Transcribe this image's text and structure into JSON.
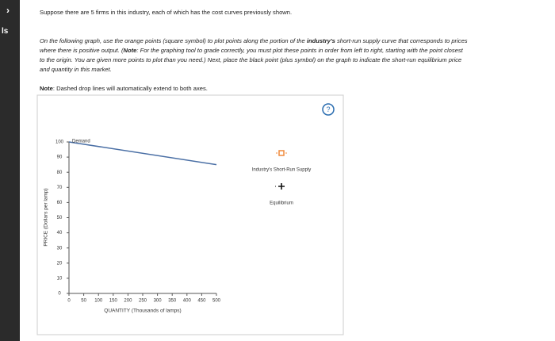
{
  "sidebar": {
    "label": "ls",
    "toggle": "›"
  },
  "prompt": "Suppose there are 5 firms in this industry, each of which has the cost curves previously shown.",
  "instructions": [
    "On the following graph, use the orange points (square symbol) to plot points along the portion of the ",
    "industry's",
    " short-run supply curve that corresponds to prices where there is positive output. (",
    "Note",
    ": For the graphing tool to grade correctly, you must plot these points in order from left to right, starting with the point closest to the origin. You are given more points to plot than you need.) Next, place the black point (plus symbol) on the graph to indicate the short-run equilibrium price and quantity in this market."
  ],
  "note": {
    "label": "Note",
    "text": ": Dashed drop lines will automatically extend to both axes."
  },
  "help": "?",
  "chart_data": {
    "type": "line",
    "x_label": "QUANTITY (Thousands of lamps)",
    "y_label": "PRICE (Dollars per lamp)",
    "series": [
      {
        "name": "Demand",
        "color": "#4a6fa5",
        "x": [
          0,
          500
        ],
        "values": [
          100,
          85
        ]
      }
    ],
    "xlim": [
      0,
      500
    ],
    "xticks": [
      0,
      50,
      100,
      150,
      200,
      250,
      300,
      350,
      400,
      450,
      500
    ],
    "ylim": [
      0,
      100
    ],
    "yticks": [
      0,
      10,
      20,
      30,
      40,
      50,
      60,
      70,
      80,
      90,
      100
    ],
    "legend": [
      {
        "name": "Industry's Short-Run Supply",
        "color": "#f08a3c",
        "symbol": "square"
      },
      {
        "name": "Equilibrium",
        "color": "#111111",
        "symbol": "plus"
      }
    ]
  }
}
